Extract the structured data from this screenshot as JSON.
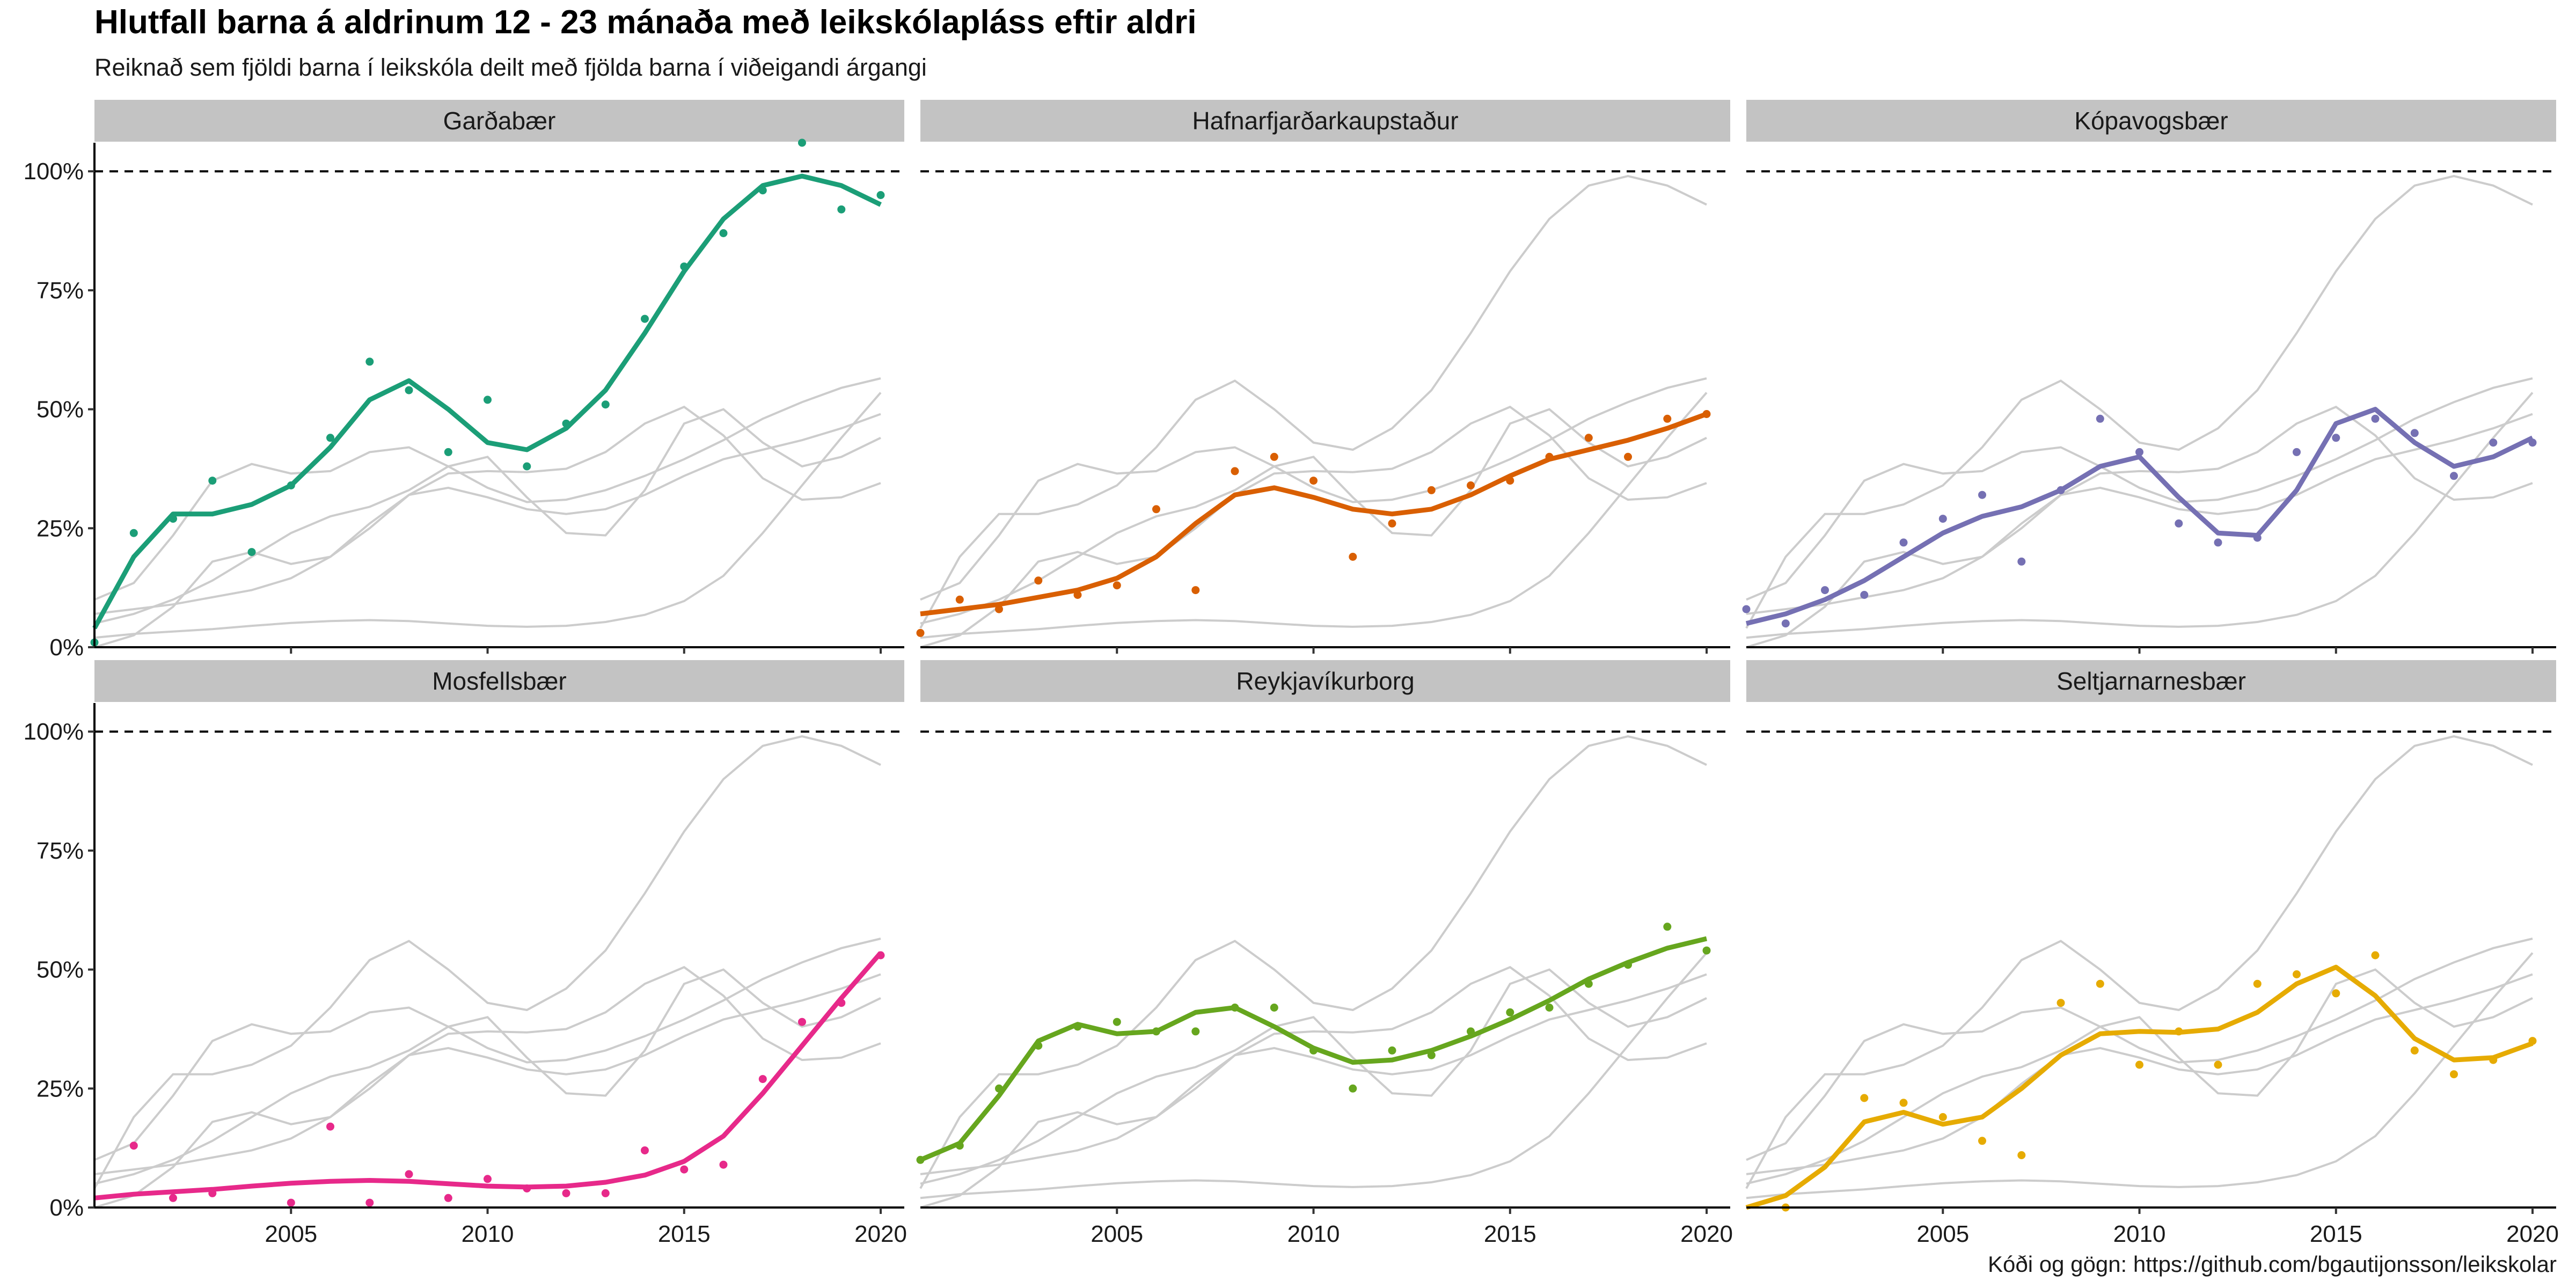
{
  "title": "Hlutfall barna á aldrinum 12 - 23 mánaða með leikskólapláss eftir aldri",
  "subtitle": "Reiknað sem fjöldi barna í leikskóla deilt með fjölda barna í viðeigandi árgangi",
  "caption": "Kóði og gögn: https://github.com/bgautijonsson/leikskolar",
  "chart_data": {
    "type": "line",
    "layout": "small-multiples 2x3",
    "x_ticks": [
      2005,
      2010,
      2015,
      2020
    ],
    "xlim": [
      2000,
      2020.6
    ],
    "y_ticks": [
      0,
      0.25,
      0.5,
      0.75,
      1.0
    ],
    "y_tick_labels": [
      "0%",
      "25%",
      "50%",
      "75%",
      "100%"
    ],
    "ylim": [
      0,
      1.06
    ],
    "reference_line": 1.0,
    "background_line_color": "#cccccc",
    "years": [
      2000,
      2001,
      2002,
      2003,
      2004,
      2005,
      2006,
      2007,
      2008,
      2009,
      2010,
      2011,
      2012,
      2013,
      2014,
      2015,
      2016,
      2017,
      2018,
      2019,
      2020
    ],
    "series": [
      {
        "name": "Garðabær",
        "color": "#1b9e77",
        "trend": [
          0.04,
          0.19,
          0.28,
          0.28,
          0.3,
          0.34,
          0.42,
          0.52,
          0.56,
          0.5,
          0.43,
          0.415,
          0.46,
          0.54,
          0.66,
          0.79,
          0.9,
          0.97,
          0.99,
          0.97,
          0.93
        ],
        "points": [
          0.01,
          0.24,
          0.27,
          0.35,
          0.2,
          0.34,
          0.44,
          0.6,
          0.54,
          0.41,
          0.52,
          0.38,
          0.47,
          0.51,
          0.69,
          0.8,
          0.87,
          0.96,
          1.06,
          0.92,
          0.95
        ]
      },
      {
        "name": "Hafnarfjarðarkaupstaður",
        "color": "#d95f02",
        "trend": [
          0.07,
          0.08,
          0.09,
          0.105,
          0.12,
          0.145,
          0.19,
          0.26,
          0.32,
          0.335,
          0.315,
          0.29,
          0.28,
          0.29,
          0.32,
          0.36,
          0.395,
          0.415,
          0.435,
          0.46,
          0.49
        ],
        "points": [
          0.03,
          0.1,
          0.08,
          0.14,
          0.11,
          0.13,
          0.29,
          0.12,
          0.37,
          0.4,
          0.35,
          0.19,
          0.26,
          0.33,
          0.34,
          0.35,
          0.4,
          0.44,
          0.4,
          0.48,
          0.49
        ]
      },
      {
        "name": "Kópavogsbær",
        "color": "#7570b3",
        "trend": [
          0.05,
          0.07,
          0.1,
          0.14,
          0.19,
          0.24,
          0.275,
          0.295,
          0.33,
          0.38,
          0.4,
          0.315,
          0.24,
          0.235,
          0.33,
          0.47,
          0.5,
          0.43,
          0.38,
          0.4,
          0.44
        ],
        "points": [
          0.08,
          0.05,
          0.12,
          0.11,
          0.22,
          0.27,
          0.32,
          0.18,
          0.33,
          0.48,
          0.41,
          0.26,
          0.22,
          0.23,
          0.41,
          0.44,
          0.48,
          0.45,
          0.36,
          0.43,
          0.43
        ]
      },
      {
        "name": "Mosfellsbær",
        "color": "#e7298a",
        "trend": [
          0.02,
          0.028,
          0.033,
          0.038,
          0.045,
          0.051,
          0.055,
          0.057,
          0.055,
          0.05,
          0.045,
          0.043,
          0.045,
          0.053,
          0.068,
          0.097,
          0.15,
          0.24,
          0.34,
          0.44,
          0.535
        ],
        "points": [
          null,
          0.13,
          0.02,
          0.03,
          null,
          0.01,
          0.17,
          0.01,
          0.07,
          0.02,
          0.06,
          0.04,
          0.03,
          0.03,
          0.12,
          0.08,
          0.09,
          0.27,
          0.39,
          0.43,
          0.53
        ]
      },
      {
        "name": "Reykjavíkurborg",
        "color": "#66a61e",
        "trend": [
          0.1,
          0.135,
          0.235,
          0.35,
          0.385,
          0.365,
          0.37,
          0.41,
          0.42,
          0.38,
          0.335,
          0.305,
          0.31,
          0.33,
          0.36,
          0.395,
          0.435,
          0.48,
          0.515,
          0.545,
          0.565
        ],
        "points": [
          0.1,
          0.13,
          0.25,
          0.34,
          0.38,
          0.39,
          0.37,
          0.37,
          0.42,
          0.42,
          0.33,
          0.25,
          0.33,
          0.32,
          0.37,
          0.41,
          0.42,
          0.47,
          0.51,
          0.59,
          0.54
        ]
      },
      {
        "name": "Seltjarnarnesbær",
        "color": "#e6ab02",
        "trend": [
          0,
          0.025,
          0.085,
          0.18,
          0.2,
          0.175,
          0.19,
          0.25,
          0.32,
          0.365,
          0.37,
          0.368,
          0.375,
          0.41,
          0.47,
          0.505,
          0.445,
          0.355,
          0.31,
          0.315,
          0.345
        ],
        "points": [
          null,
          0,
          null,
          0.23,
          0.22,
          0.19,
          0.14,
          0.11,
          0.43,
          0.47,
          0.3,
          0.37,
          0.3,
          0.47,
          0.49,
          0.45,
          0.53,
          0.33,
          0.28,
          0.31,
          0.35
        ]
      }
    ]
  }
}
